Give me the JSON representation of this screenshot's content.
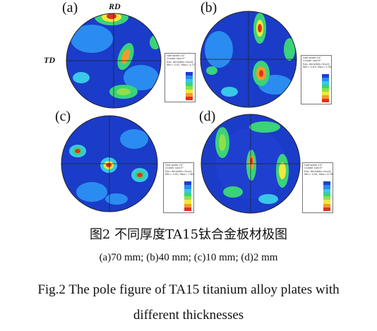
{
  "panels": [
    {
      "label": "(a)",
      "rd": "RD",
      "td": "TD",
      "legend": {
        "line1": "Half width:10°",
        "line2": "Cluster size:5°",
        "line3": "Exp. densities (mud):",
        "line4": "Min= 0.02, Max= 5.27"
      }
    },
    {
      "label": "(b)",
      "legend": {
        "line1": "Half width:10°",
        "line2": "Cluster size:5°",
        "line3": "Exp. densities (mud):",
        "line4": "Min= 0.03, Max= 5.30"
      }
    },
    {
      "label": "(c)",
      "legend": {
        "line1": "Half width:10°",
        "line2": "Cluster size:5°",
        "line3": "Exp. densities (mud):",
        "line4": "Min= 0.00, Max= 7.60"
      }
    },
    {
      "label": "(d)",
      "legend": {
        "line1": "Half width:10°",
        "line2": "Cluster size:5°",
        "line3": "Exp. densities (mud):",
        "line4": "Min= 0.04, Max= 8.78"
      }
    }
  ],
  "colors": {
    "background": "#1a3cc8",
    "scale": [
      "#1f3fd0",
      "#2a8cf0",
      "#39c8e8",
      "#3ad27a",
      "#8ee04a",
      "#f2e83a",
      "#f29a2a",
      "#e0321c"
    ]
  },
  "caption": {
    "zh": "图2 不同厚度TA15钛合金板材极图",
    "sub": "(a)70 mm; (b)40 mm; (c)10 mm; (d)2 mm",
    "en1": "Fig.2  The pole figure of TA15 titanium alloy plates with",
    "en2": "different thicknesses"
  }
}
